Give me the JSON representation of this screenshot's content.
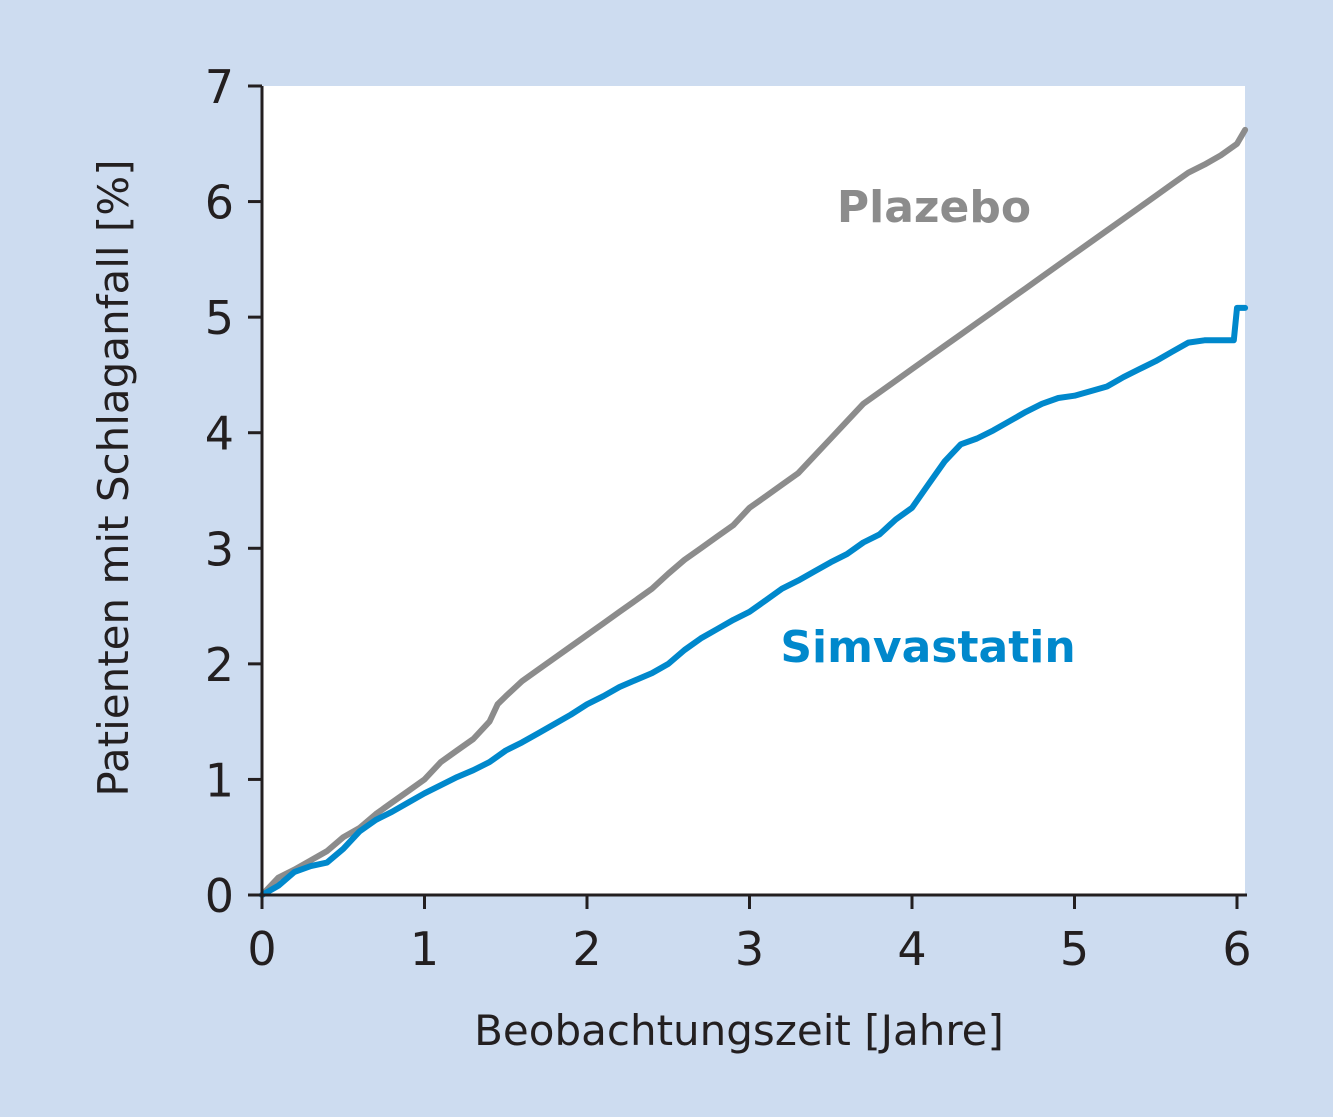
{
  "chart_data": {
    "type": "line",
    "xlabel": "Beobachtungszeit [Jahre]",
    "ylabel": "Patienten mit Schlaganfall [%]",
    "xlim": [
      0,
      6.05
    ],
    "ylim": [
      0,
      7
    ],
    "xticks": [
      "0",
      "1",
      "2",
      "3",
      "4",
      "5",
      "6"
    ],
    "yticks": [
      "0",
      "1",
      "2",
      "3",
      "4",
      "5",
      "6",
      "7"
    ],
    "grid": false,
    "colors": {
      "background": "#cddcf0",
      "plot": "#ffffff",
      "axis": "#231f20"
    },
    "series": [
      {
        "name": "Plazebo",
        "color": "#8c8c8c",
        "x": [
          0,
          0.1,
          0.2,
          0.3,
          0.4,
          0.5,
          0.6,
          0.7,
          0.8,
          0.9,
          1.0,
          1.1,
          1.2,
          1.3,
          1.4,
          1.45,
          1.5,
          1.6,
          1.7,
          1.8,
          1.9,
          2.0,
          2.1,
          2.2,
          2.3,
          2.4,
          2.5,
          2.6,
          2.7,
          2.8,
          2.9,
          3.0,
          3.1,
          3.2,
          3.3,
          3.4,
          3.5,
          3.6,
          3.7,
          3.8,
          3.9,
          4.0,
          4.1,
          4.2,
          4.3,
          4.4,
          4.5,
          4.6,
          4.7,
          4.8,
          4.9,
          5.0,
          5.1,
          5.2,
          5.3,
          5.4,
          5.5,
          5.6,
          5.7,
          5.8,
          5.9,
          6.0,
          6.05
        ],
        "y": [
          0,
          0.15,
          0.22,
          0.3,
          0.38,
          0.5,
          0.58,
          0.7,
          0.8,
          0.9,
          1.0,
          1.15,
          1.25,
          1.35,
          1.5,
          1.65,
          1.72,
          1.85,
          1.95,
          2.05,
          2.15,
          2.25,
          2.35,
          2.45,
          2.55,
          2.65,
          2.78,
          2.9,
          3.0,
          3.1,
          3.2,
          3.35,
          3.45,
          3.55,
          3.65,
          3.8,
          3.95,
          4.1,
          4.25,
          4.35,
          4.45,
          4.55,
          4.65,
          4.75,
          4.85,
          4.95,
          5.05,
          5.15,
          5.25,
          5.35,
          5.45,
          5.55,
          5.65,
          5.75,
          5.85,
          5.95,
          6.05,
          6.15,
          6.25,
          6.32,
          6.4,
          6.5,
          6.62
        ]
      },
      {
        "name": "Simvastatin",
        "color": "#0088cc",
        "x": [
          0,
          0.1,
          0.2,
          0.3,
          0.4,
          0.5,
          0.6,
          0.7,
          0.8,
          0.9,
          1.0,
          1.1,
          1.2,
          1.3,
          1.4,
          1.5,
          1.6,
          1.7,
          1.8,
          1.9,
          2.0,
          2.1,
          2.2,
          2.3,
          2.4,
          2.5,
          2.6,
          2.7,
          2.8,
          2.9,
          3.0,
          3.1,
          3.2,
          3.3,
          3.4,
          3.5,
          3.6,
          3.7,
          3.8,
          3.9,
          4.0,
          4.1,
          4.2,
          4.3,
          4.4,
          4.5,
          4.6,
          4.7,
          4.8,
          4.9,
          5.0,
          5.1,
          5.2,
          5.3,
          5.4,
          5.5,
          5.6,
          5.7,
          5.8,
          5.9,
          5.98,
          6.0,
          6.05
        ],
        "y": [
          0,
          0.08,
          0.2,
          0.25,
          0.28,
          0.4,
          0.55,
          0.65,
          0.72,
          0.8,
          0.88,
          0.95,
          1.02,
          1.08,
          1.15,
          1.25,
          1.32,
          1.4,
          1.48,
          1.56,
          1.65,
          1.72,
          1.8,
          1.86,
          1.92,
          2.0,
          2.12,
          2.22,
          2.3,
          2.38,
          2.45,
          2.55,
          2.65,
          2.72,
          2.8,
          2.88,
          2.95,
          3.05,
          3.12,
          3.25,
          3.35,
          3.55,
          3.75,
          3.9,
          3.95,
          4.02,
          4.1,
          4.18,
          4.25,
          4.3,
          4.32,
          4.36,
          4.4,
          4.48,
          4.55,
          4.62,
          4.7,
          4.78,
          4.8,
          4.8,
          4.8,
          5.08,
          5.08
        ]
      }
    ]
  }
}
